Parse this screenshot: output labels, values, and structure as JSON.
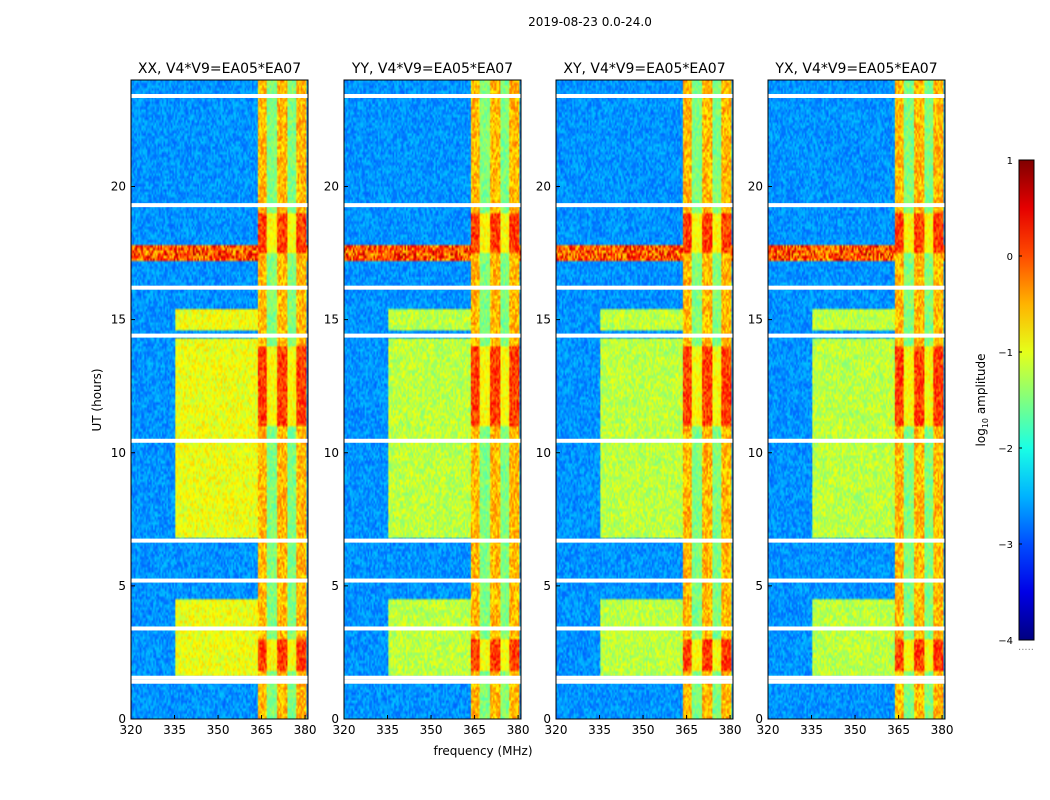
{
  "chart_data": {
    "type": "heatmap",
    "suptitle": "2019-08-23 0.0-24.0",
    "xlabel": "frequency (MHz)",
    "ylabel": "UT (hours)",
    "xlim": [
      320,
      381
    ],
    "ylim": [
      0,
      24
    ],
    "xticks": [
      320,
      335,
      350,
      365,
      380
    ],
    "yticks": [
      0,
      5,
      10,
      15,
      20
    ],
    "panels": [
      {
        "title": "XX, V4*V9=EA05*EA07",
        "pol": "XX"
      },
      {
        "title": "YY, V4*V9=EA05*EA07",
        "pol": "YY"
      },
      {
        "title": "XY, V4*V9=EA05*EA07",
        "pol": "XY"
      },
      {
        "title": "YX, V4*V9=EA05*EA07",
        "pol": "YX"
      }
    ],
    "rfi_band_MHz": [
      363.5,
      380.5
    ],
    "blank_rows_UT": [
      1.4,
      1.55,
      3.4,
      5.2,
      6.7,
      10.45,
      14.4,
      16.2,
      19.3,
      23.4
    ],
    "colorbar": {
      "label": "log10 amplitude",
      "label_base": "log",
      "label_sub": "10",
      "label_rest": " amplitude",
      "range": [
        -4,
        1
      ],
      "ticks": [
        1,
        0,
        -1,
        -2,
        -3,
        -4
      ],
      "tick_labels": [
        "1",
        "0",
        "−1",
        "−2",
        "−3",
        "−4"
      ],
      "colormap": "jet",
      "extra_label": "....."
    }
  }
}
